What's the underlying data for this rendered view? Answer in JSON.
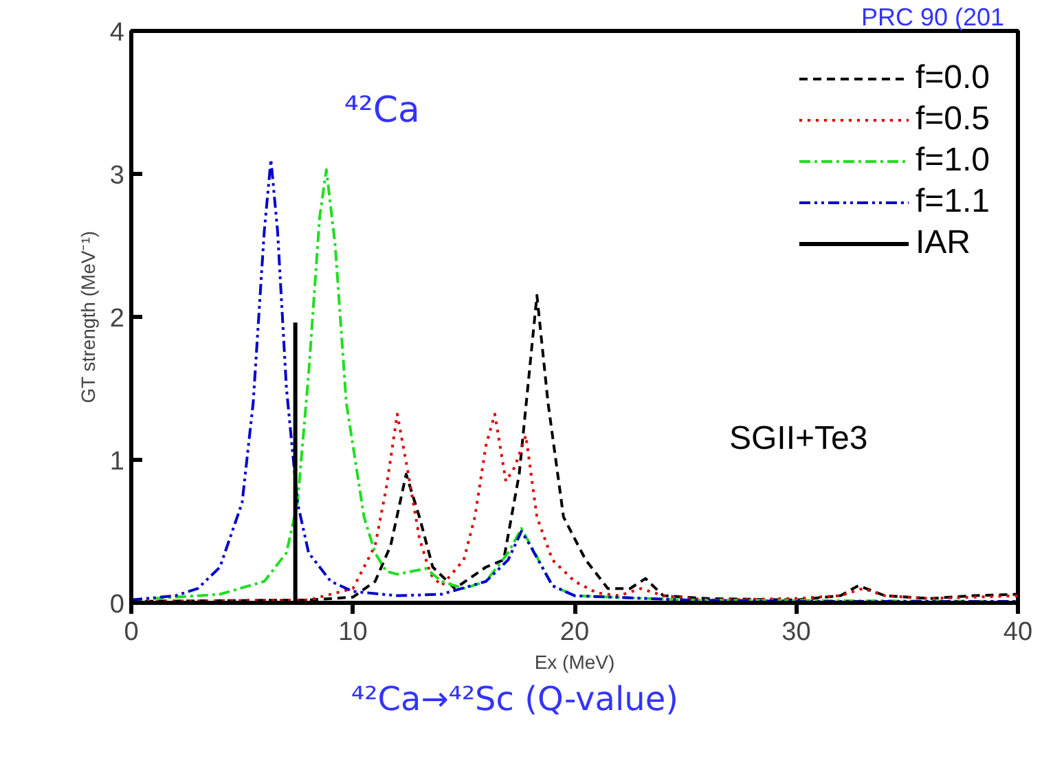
{
  "chart_data": {
    "type": "line",
    "xlabel": "Ex (MeV)",
    "ylabel": "GT strength (MeV⁻¹)",
    "xlim": [
      0,
      40
    ],
    "ylim": [
      0,
      4
    ],
    "xticks": [
      0,
      10,
      20,
      30,
      40
    ],
    "yticks": [
      0,
      1,
      2,
      3,
      4
    ],
    "legend": "top right",
    "grid": false,
    "marker": "none",
    "annotations": [
      "⁴²Ca",
      "SGII+Te3",
      "PRC 90 (201",
      "⁴²Ca→⁴²Sc (Q-value)"
    ],
    "series": [
      {
        "name": "f=0.0",
        "color": "#000000",
        "line_style": "dashed",
        "x": [
          0,
          8,
          10,
          11,
          11.7,
          12.4,
          13,
          13.6,
          14.6,
          16,
          16.8,
          17.5,
          18.3,
          18.8,
          19.5,
          20.5,
          21.5,
          22.5,
          23.2,
          24,
          26,
          30,
          32,
          32.8,
          34,
          36,
          38,
          40
        ],
        "values": [
          0.01,
          0.02,
          0.04,
          0.15,
          0.4,
          0.9,
          0.6,
          0.25,
          0.1,
          0.25,
          0.3,
          0.9,
          2.15,
          1.4,
          0.6,
          0.3,
          0.1,
          0.1,
          0.17,
          0.05,
          0.03,
          0.02,
          0.05,
          0.12,
          0.05,
          0.03,
          0.05,
          0.06
        ]
      },
      {
        "name": "f=0.5",
        "color": "#e00000",
        "line_style": "dotted",
        "x": [
          0,
          8,
          10,
          11,
          11.5,
          12,
          12.5,
          13,
          13.5,
          14,
          15,
          15.5,
          16,
          16.4,
          16.9,
          17.3,
          17.8,
          18.3,
          19,
          20,
          21,
          22,
          23,
          24,
          26,
          30,
          32,
          33,
          34,
          36,
          38,
          40
        ],
        "values": [
          0.01,
          0.02,
          0.1,
          0.4,
          0.8,
          1.32,
          0.9,
          0.45,
          0.2,
          0.12,
          0.3,
          0.6,
          1.1,
          1.32,
          0.85,
          0.95,
          1.17,
          0.6,
          0.3,
          0.15,
          0.07,
          0.05,
          0.1,
          0.05,
          0.02,
          0.03,
          0.05,
          0.1,
          0.05,
          0.03,
          0.04,
          0.05
        ]
      },
      {
        "name": "f=1.0",
        "color": "#22dd22",
        "line_style": "dashdot",
        "x": [
          0,
          4,
          6,
          7,
          7.5,
          8,
          8.5,
          8.8,
          9.2,
          9.7,
          10.5,
          11,
          11.5,
          12,
          13.3,
          14,
          15,
          16,
          17,
          17.6,
          18.2,
          19,
          20,
          25,
          40
        ],
        "values": [
          0.02,
          0.06,
          0.15,
          0.35,
          0.7,
          1.6,
          2.7,
          3.03,
          2.5,
          1.4,
          0.6,
          0.35,
          0.22,
          0.2,
          0.24,
          0.15,
          0.1,
          0.15,
          0.35,
          0.52,
          0.35,
          0.12,
          0.05,
          0.02,
          0.01
        ]
      },
      {
        "name": "f=1.1",
        "color": "#0000cc",
        "line_style": "dashdotdot",
        "x": [
          0,
          2,
          3,
          4,
          5,
          5.5,
          6,
          6.3,
          6.6,
          7,
          7.5,
          8,
          9,
          10,
          12,
          14,
          16,
          17,
          17.6,
          18,
          19,
          20,
          25,
          30,
          40
        ],
        "values": [
          0.02,
          0.05,
          0.1,
          0.25,
          0.7,
          1.4,
          2.6,
          3.1,
          2.6,
          1.5,
          0.7,
          0.35,
          0.15,
          0.08,
          0.05,
          0.06,
          0.15,
          0.3,
          0.5,
          0.4,
          0.12,
          0.05,
          0.02,
          0.01,
          0.01
        ]
      },
      {
        "name": "IAR",
        "color": "#000000",
        "line_style": "solid",
        "x": [
          7.4,
          7.4
        ],
        "values": [
          0,
          1.96
        ]
      }
    ]
  }
}
